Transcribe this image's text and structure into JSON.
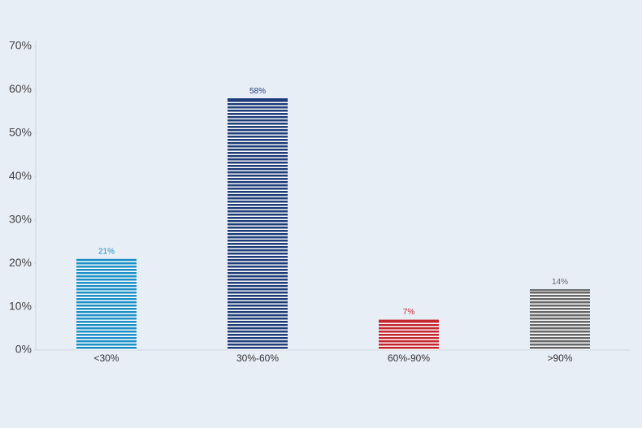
{
  "chart_data": {
    "type": "bar",
    "categories": [
      "<30%",
      "30%-60%",
      "60%-90%",
      ">90%"
    ],
    "values": [
      21,
      58,
      7,
      14
    ],
    "value_labels": [
      "21%",
      "58%",
      "7%",
      "14%"
    ],
    "colors": [
      "#1b8fc6",
      "#1f3d78",
      "#c4262e",
      "#676767"
    ],
    "ylim": [
      0,
      70
    ],
    "yticks": [
      {
        "value": 0,
        "label": "0%"
      },
      {
        "value": 10,
        "label": "10%"
      },
      {
        "value": 20,
        "label": "20%"
      },
      {
        "value": 30,
        "label": "30%"
      },
      {
        "value": 40,
        "label": "40%"
      },
      {
        "value": 50,
        "label": "50%"
      },
      {
        "value": 60,
        "label": "60%"
      },
      {
        "value": 70,
        "label": "70%"
      }
    ],
    "grid": false
  }
}
